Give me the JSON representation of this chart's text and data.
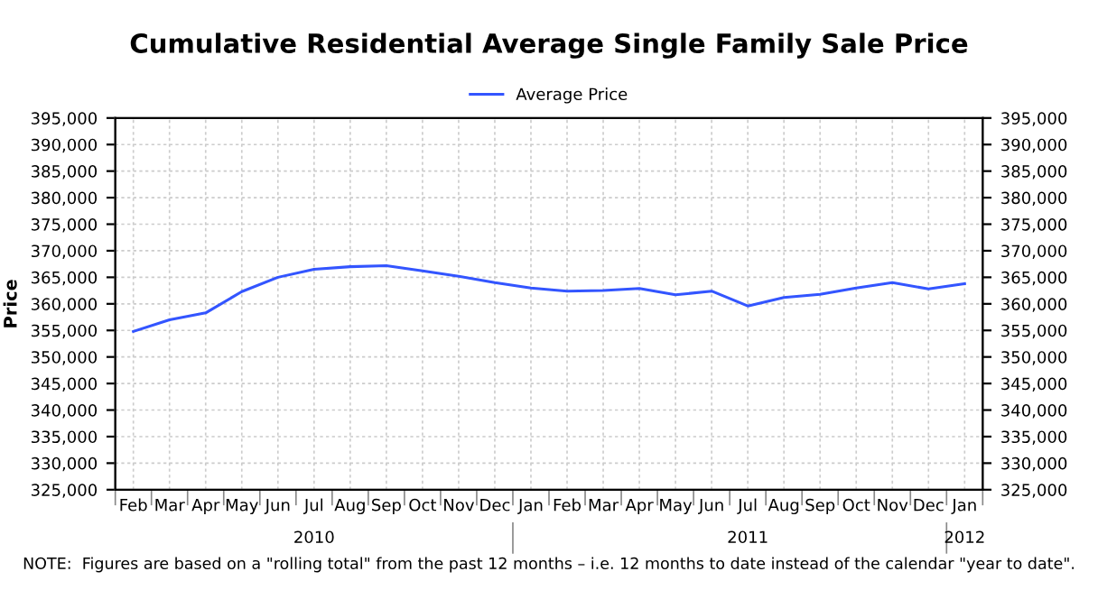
{
  "chart_data": {
    "type": "line",
    "title": "Cumulative Residential Average Single Family Sale Price",
    "categories": [
      "Feb",
      "Mar",
      "Apr",
      "May",
      "Jun",
      "Jul",
      "Aug",
      "Sep",
      "Oct",
      "Nov",
      "Dec",
      "Jan",
      "Feb",
      "Mar",
      "Apr",
      "May",
      "Jun",
      "Jul",
      "Aug",
      "Sep",
      "Oct",
      "Nov",
      "Dec",
      "Jan"
    ],
    "series": [
      {
        "name": "Average Price",
        "color": "#3355ff",
        "values": [
          354800,
          357000,
          358300,
          362300,
          365000,
          366500,
          367000,
          367200,
          366200,
          365200,
          364000,
          363000,
          362400,
          362500,
          362900,
          361700,
          362400,
          359600,
          361200,
          361800,
          363000,
          364000,
          362800,
          363800
        ]
      }
    ],
    "ylabel": "Price",
    "ylim": [
      325000,
      395000
    ],
    "yticks": [
      {
        "value": 325000,
        "label": "325,000"
      },
      {
        "value": 330000,
        "label": "330,000"
      },
      {
        "value": 335000,
        "label": "335,000"
      },
      {
        "value": 340000,
        "label": "340,000"
      },
      {
        "value": 345000,
        "label": "345,000"
      },
      {
        "value": 350000,
        "label": "350,000"
      },
      {
        "value": 355000,
        "label": "355,000"
      },
      {
        "value": 360000,
        "label": "360,000"
      },
      {
        "value": 365000,
        "label": "365,000"
      },
      {
        "value": 370000,
        "label": "370,000"
      },
      {
        "value": 375000,
        "label": "375,000"
      },
      {
        "value": 380000,
        "label": "380,000"
      },
      {
        "value": 385000,
        "label": "385,000"
      },
      {
        "value": 390000,
        "label": "390,000"
      },
      {
        "value": 395000,
        "label": "395,000"
      }
    ],
    "y2lim": [
      325000,
      395000
    ],
    "y2ticks": [
      {
        "value": 325000,
        "label": "325,000"
      },
      {
        "value": 330000,
        "label": "330,000"
      },
      {
        "value": 335000,
        "label": "335,000"
      },
      {
        "value": 340000,
        "label": "340,000"
      },
      {
        "value": 345000,
        "label": "345,000"
      },
      {
        "value": 350000,
        "label": "350,000"
      },
      {
        "value": 355000,
        "label": "355,000"
      },
      {
        "value": 360000,
        "label": "360,000"
      },
      {
        "value": 365000,
        "label": "365,000"
      },
      {
        "value": 370000,
        "label": "370,000"
      },
      {
        "value": 375000,
        "label": "375,000"
      },
      {
        "value": 380000,
        "label": "380,000"
      },
      {
        "value": 385000,
        "label": "385,000"
      },
      {
        "value": 390000,
        "label": "390,000"
      },
      {
        "value": 395000,
        "label": "395,000"
      }
    ],
    "grid": true,
    "legend": "top",
    "marker": "none",
    "line_style": "solid",
    "annotations": [
      "2010",
      "2011",
      "2012",
      "NOTE:  Figures are based on a \"rolling total\" from the past 12 months – i.e. 12 months to date instead of the calendar \"year to date\"."
    ]
  }
}
